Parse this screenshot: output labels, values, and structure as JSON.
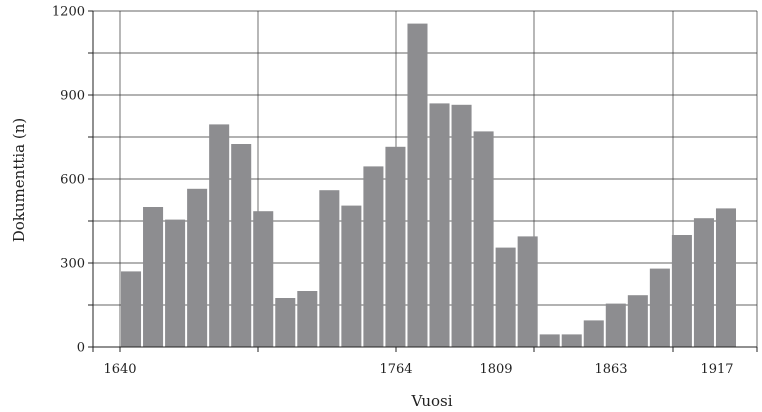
{
  "chart_data": {
    "type": "bar",
    "title": "",
    "xlabel": "Vuosi",
    "ylabel": "Dokumenttia (n)",
    "ylim": [
      0,
      1200
    ],
    "yticks": [
      0,
      300,
      600,
      900,
      1200
    ],
    "xtick_labels": [
      "1640",
      "1764",
      "1809",
      "1863",
      "1917"
    ],
    "grid": true,
    "bar_color": "#8d8d90",
    "values": [
      270,
      500,
      455,
      565,
      795,
      725,
      485,
      175,
      200,
      560,
      505,
      645,
      715,
      1155,
      870,
      865,
      770,
      355,
      395,
      45,
      45,
      95,
      155,
      185,
      280,
      400,
      460,
      495
    ]
  }
}
